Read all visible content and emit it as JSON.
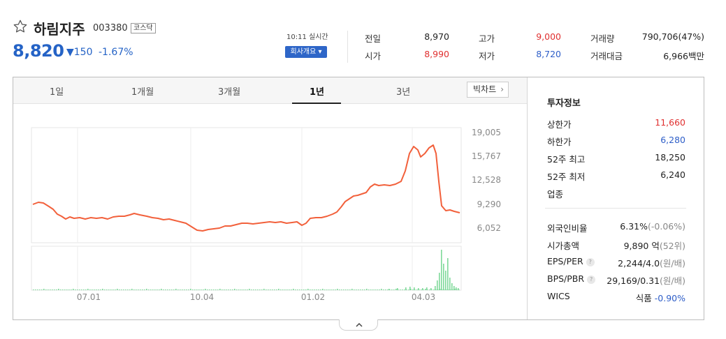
{
  "stock": {
    "name": "하림지주",
    "code": "003380",
    "market": "코스닥",
    "price": "8,820",
    "change": "▼150",
    "change_pct": "-1.67%",
    "realtime": "10:11 실시간",
    "company_btn": "회사개요 ▾"
  },
  "quote": {
    "prev_label": "전일",
    "prev": "8,970",
    "open_label": "시가",
    "open": "8,990",
    "high_label": "고가",
    "high": "9,000",
    "low_label": "저가",
    "low": "8,720",
    "vol_label": "거래량",
    "vol": "790,706(47%)",
    "amt_label": "거래대금",
    "amt": "6,966",
    "amt_unit": "백만"
  },
  "tabs": [
    "1일",
    "1개월",
    "3개월",
    "1년",
    "3년"
  ],
  "active_tab": "1년",
  "big_chart_btn": "빅차트",
  "panel": {
    "title": "투자정보",
    "rows1": [
      {
        "label": "상한가",
        "value": "11,660",
        "color": "red"
      },
      {
        "label": "하한가",
        "value": "6,280",
        "color": "blue"
      },
      {
        "label": "52주 최고",
        "value": "18,250",
        "color": "dark"
      },
      {
        "label": "52주 최저",
        "value": "6,240",
        "color": "dark"
      },
      {
        "label": "업종",
        "value": "",
        "color": "dark"
      }
    ],
    "foreign_label": "외국인비율",
    "foreign_value": "6.31%",
    "foreign_paren": "(-0.06%)",
    "mcap_label": "시가총액",
    "mcap_value": "9,890 억",
    "mcap_paren": "(52위)",
    "eps_label": "EPS/PER",
    "eps_value": "2,244/4.0",
    "eps_paren": "(원/배)",
    "bps_label": "BPS/PBR",
    "bps_value": "29,169/0.31",
    "bps_paren": "(원/배)",
    "wics_label": "WICS",
    "wics_value": "식품",
    "wics_change": "-0.90%"
  },
  "chart_data": {
    "type": "line",
    "y_ticks": [
      "19,005",
      "15,767",
      "12,528",
      "9,290",
      "6,052"
    ],
    "x_ticks": [
      "07.01",
      "10.04",
      "01.02",
      "04.03"
    ],
    "line_color": "#f2603b",
    "volume_color": "#7fd99a"
  }
}
